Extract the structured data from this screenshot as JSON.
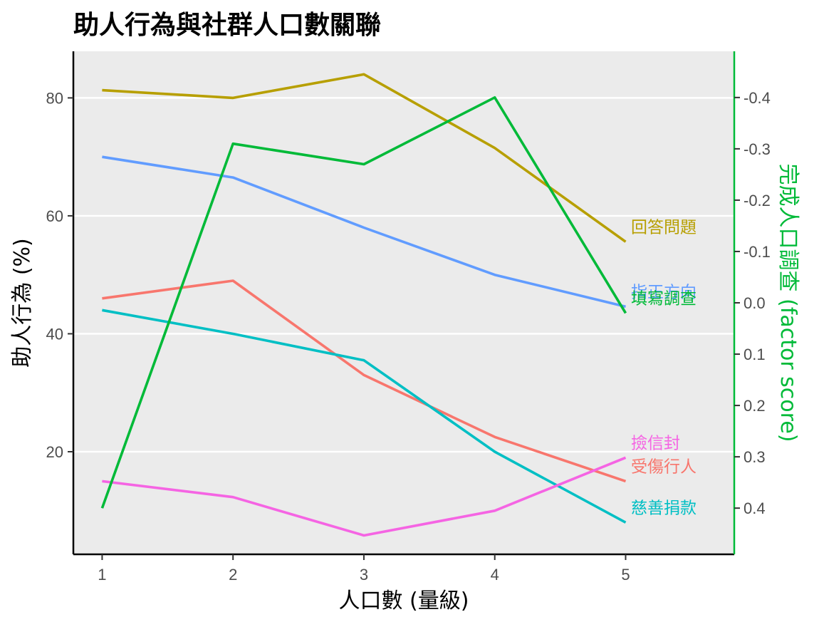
{
  "chart_data": {
    "type": "line",
    "title": "助人行為與社群人口數關聯",
    "xlabel": "人口數 (量級)",
    "ylabel": "助人行為 (%)",
    "y2label": "完成人口調查 (factor score)",
    "x": [
      1,
      2,
      3,
      4,
      5
    ],
    "xlim": [
      0.78,
      5.83
    ],
    "ylim": [
      2.6,
      87.9
    ],
    "y2lim": [
      0.49,
      -0.49
    ],
    "y2_reversed": true,
    "xticks": [
      "1",
      "2",
      "3",
      "4",
      "5"
    ],
    "yticks": [
      20,
      40,
      60,
      80
    ],
    "y2ticks": [
      "-0.4",
      "-0.3",
      "-0.2",
      "-0.1",
      "0.0",
      "0.1",
      "0.2",
      "0.3",
      "0.4"
    ],
    "y2tick_values": [
      -0.4,
      -0.3,
      -0.2,
      -0.1,
      0.0,
      0.1,
      0.2,
      0.3,
      0.4
    ],
    "grid": true,
    "series": [
      {
        "name": "回答問題",
        "axis": "left",
        "color": "#b79f00",
        "values": [
          81.3,
          80.0,
          84.0,
          71.5,
          55.6
        ]
      },
      {
        "name": "指正方向",
        "axis": "left",
        "color": "#619cff",
        "values": [
          70.0,
          66.5,
          58.0,
          50.0,
          44.6
        ]
      },
      {
        "name": "受傷行人",
        "axis": "left",
        "color": "#f8766d",
        "values": [
          46.0,
          49.0,
          33.0,
          22.5,
          15.0
        ]
      },
      {
        "name": "慈善捐款",
        "axis": "left",
        "color": "#00bfc4",
        "values": [
          44.0,
          40.0,
          35.5,
          20.0,
          8.0
        ]
      },
      {
        "name": "撿信封",
        "axis": "left",
        "color": "#f564e3",
        "values": [
          15.0,
          12.3,
          5.8,
          10.0,
          19.0
        ]
      },
      {
        "name": "填寫調查",
        "axis": "right",
        "color": "#00ba38",
        "values": [
          0.4,
          -0.31,
          -0.27,
          -0.4,
          0.02
        ]
      }
    ],
    "label_offsets_note": ""
  }
}
